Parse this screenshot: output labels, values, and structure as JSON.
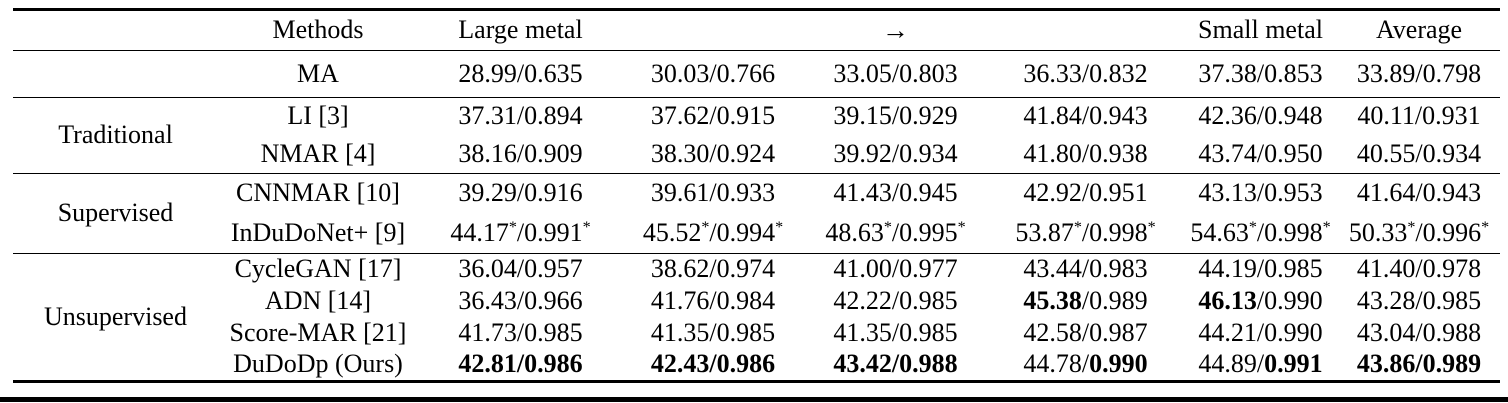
{
  "table": {
    "header": {
      "category": "",
      "methods": "Methods",
      "col1": "Large metal",
      "col2": "",
      "col3_arrow": "→",
      "col4": "",
      "col5": "Small metal",
      "col6": "Average"
    },
    "value_format": "PSNR/SSIM",
    "sections": [
      {
        "category": "",
        "rows": [
          {
            "method": "MA",
            "values": [
              "28.99/0.635",
              "30.03/0.766",
              "33.05/0.803",
              "36.33/0.832",
              "37.38/0.853",
              "33.89/0.798"
            ],
            "bold": [
              "none",
              "none",
              "none",
              "none",
              "none",
              "none"
            ]
          }
        ]
      },
      {
        "category": "Traditional",
        "rows": [
          {
            "method": "LI [3]",
            "values": [
              "37.31/0.894",
              "37.62/0.915",
              "39.15/0.929",
              "41.84/0.943",
              "42.36/0.948",
              "40.11/0.931"
            ],
            "bold": [
              "none",
              "none",
              "none",
              "none",
              "none",
              "none"
            ]
          },
          {
            "method": "NMAR [4]",
            "values": [
              "38.16/0.909",
              "38.30/0.924",
              "39.92/0.934",
              "41.80/0.938",
              "43.74/0.950",
              "40.55/0.934"
            ],
            "bold": [
              "none",
              "none",
              "none",
              "none",
              "none",
              "none"
            ]
          }
        ]
      },
      {
        "category": "Supervised",
        "rows": [
          {
            "method": "CNNMAR [10]",
            "values": [
              "39.29/0.916",
              "39.61/0.933",
              "41.43/0.945",
              "42.92/0.951",
              "43.13/0.953",
              "41.64/0.943"
            ],
            "bold": [
              "none",
              "none",
              "none",
              "none",
              "none",
              "none"
            ]
          },
          {
            "method": "InDuDoNet+ [9]",
            "values": [
              "44.17*/0.991*",
              "45.52*/0.994*",
              "48.63*/0.995*",
              "53.87*/0.998*",
              "54.63*/0.998*",
              "50.33*/0.996*"
            ],
            "bold": [
              "none",
              "none",
              "none",
              "none",
              "none",
              "none"
            ]
          }
        ]
      },
      {
        "category": "Unsupervised",
        "rows": [
          {
            "method": "CycleGAN [17]",
            "values": [
              "36.04/0.957",
              "38.62/0.974",
              "41.00/0.977",
              "43.44/0.983",
              "44.19/0.985",
              "41.40/0.978"
            ],
            "bold": [
              "none",
              "none",
              "none",
              "none",
              "none",
              "none"
            ]
          },
          {
            "method": "ADN [14]",
            "values": [
              "36.43/0.966",
              "41.76/0.984",
              "42.22/0.985",
              "45.38/0.989",
              "46.13/0.990",
              "43.28/0.985"
            ],
            "bold": [
              "none",
              "none",
              "none",
              "psnr",
              "psnr",
              "none"
            ]
          },
          {
            "method": "Score-MAR [21]",
            "values": [
              "41.73/0.985",
              "41.35/0.985",
              "41.35/0.985",
              "42.58/0.987",
              "44.21/0.990",
              "43.04/0.988"
            ],
            "bold": [
              "none",
              "none",
              "none",
              "none",
              "none",
              "none"
            ]
          },
          {
            "method": "DuDoDp (Ours)",
            "values": [
              "42.81/0.986",
              "42.43/0.986",
              "43.42/0.988",
              "44.78/0.990",
              "44.89/0.991",
              "43.86/0.989"
            ],
            "bold": [
              "all",
              "all",
              "all",
              "ssim",
              "ssim",
              "all"
            ]
          }
        ]
      }
    ]
  }
}
